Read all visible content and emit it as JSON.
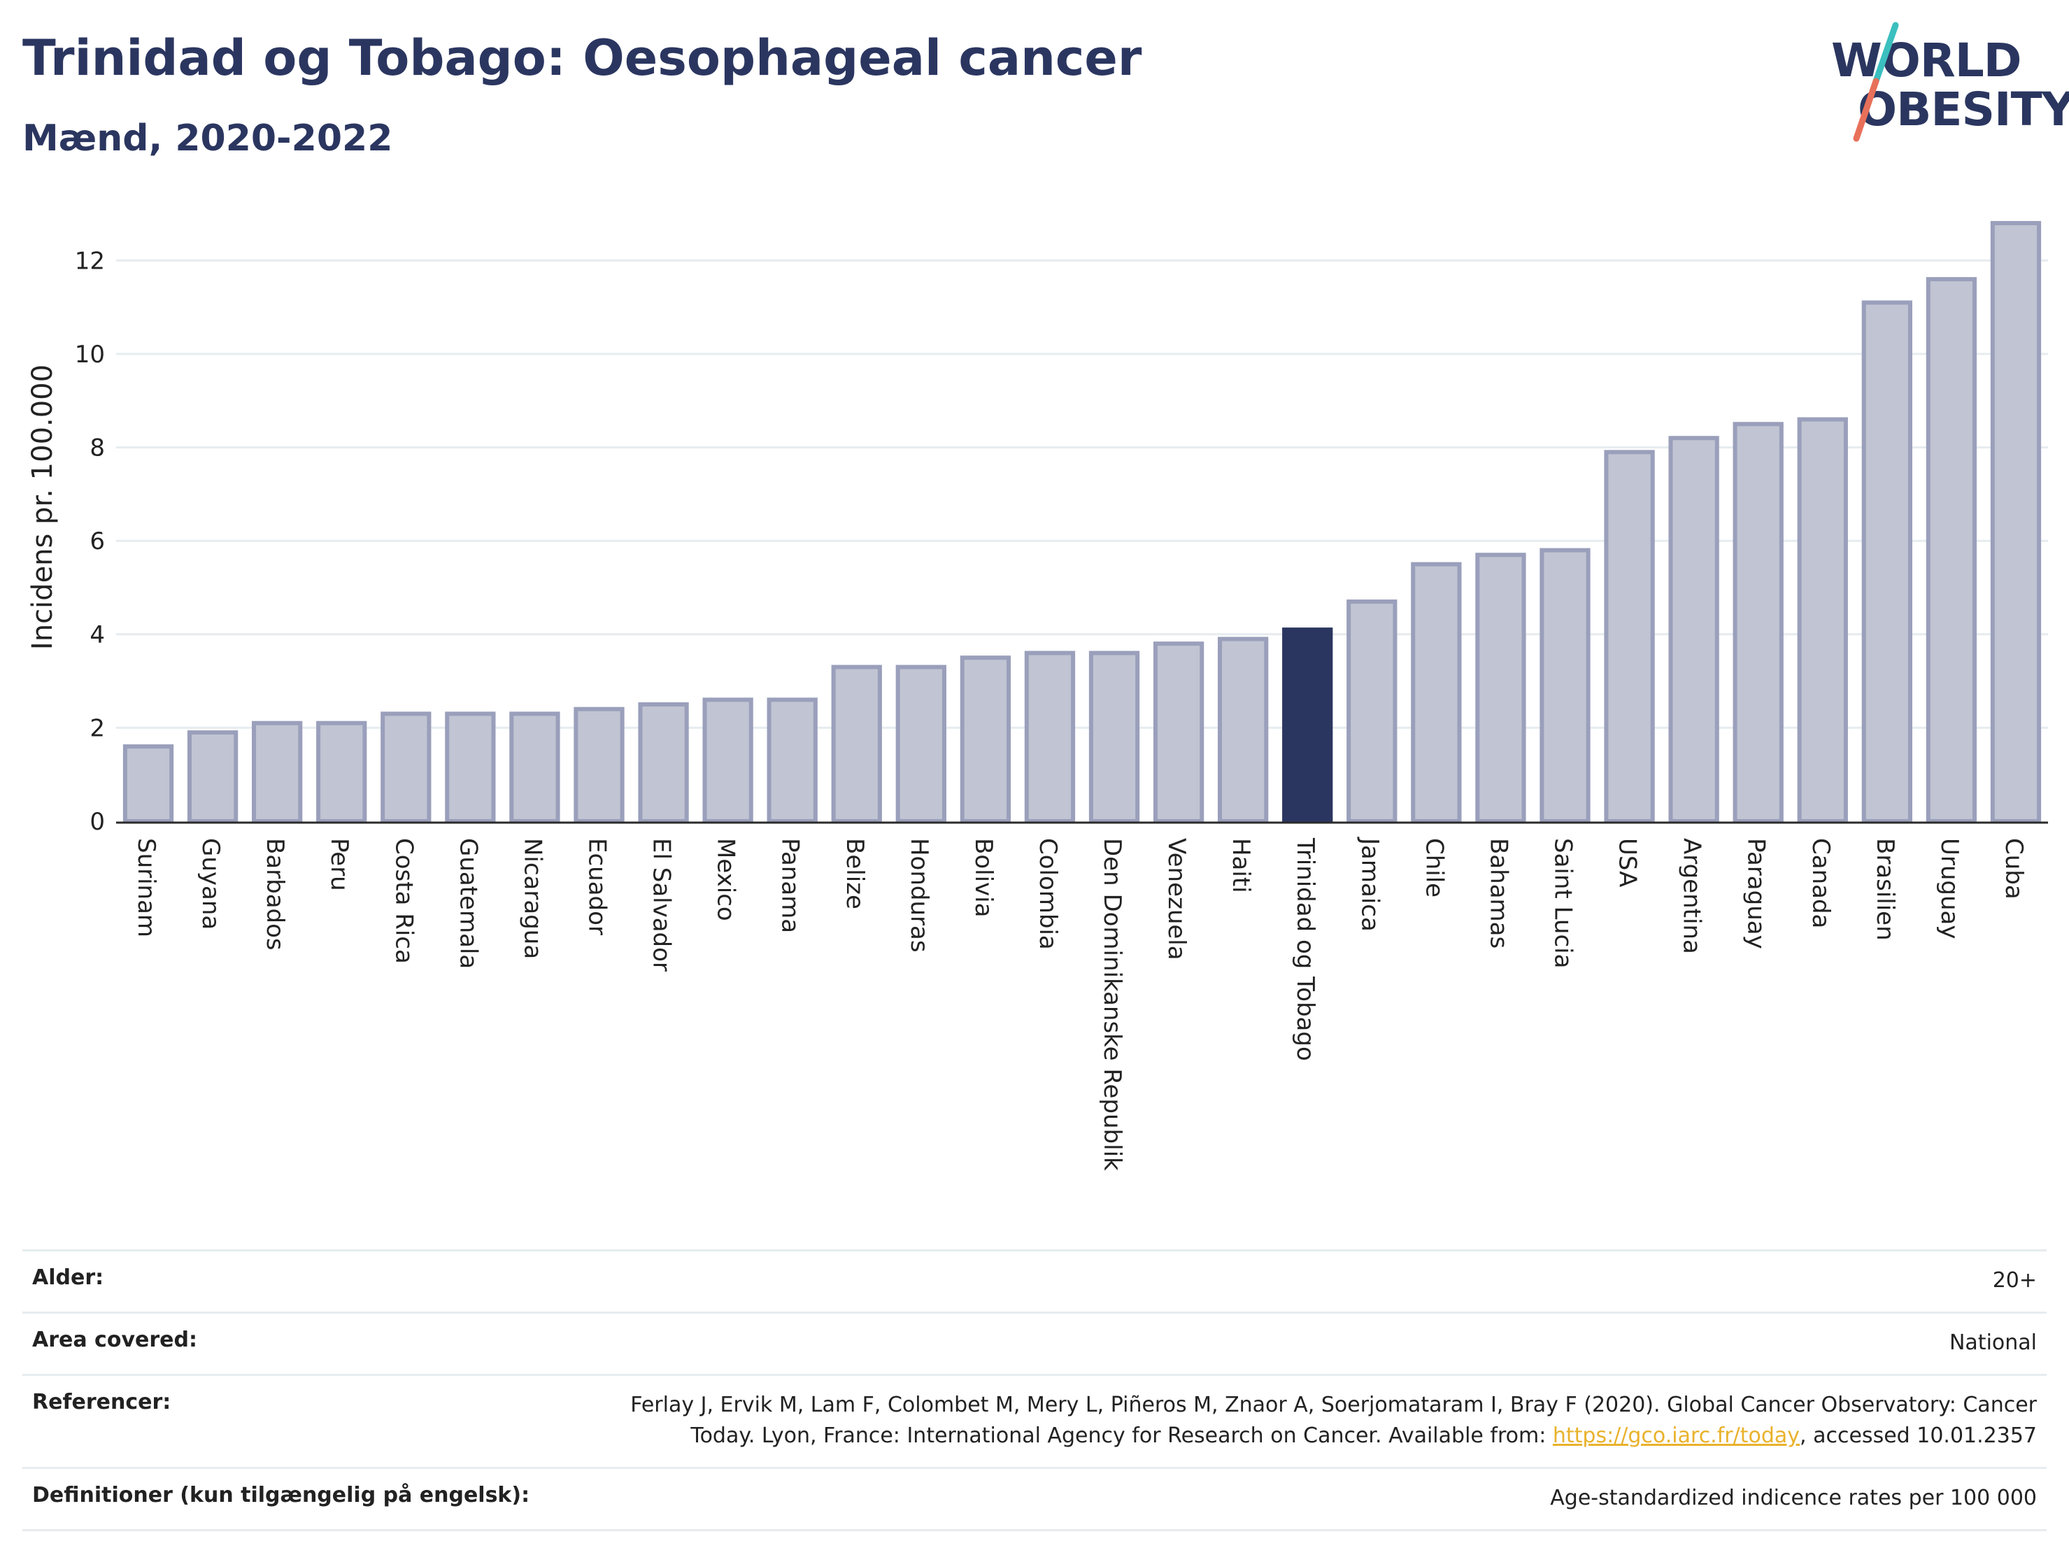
{
  "header": {
    "title": "Trinidad og Tobago: Oesophageal cancer",
    "subtitle": "Mænd, 2020-2022"
  },
  "logo": {
    "line1": "WORLD",
    "line2": "OBESITY",
    "accent_teal": "#3bbfbf",
    "accent_coral": "#e8705a"
  },
  "colors": {
    "bar_default": "#c1c4d2",
    "bar_border": "#9a9fbb",
    "bar_highlight": "#2b3660",
    "text_dark": "#2b3660",
    "grid": "#e6ecef"
  },
  "chart_data": {
    "type": "bar",
    "ylabel": "Incidens pr. 100.000",
    "xlabel": "",
    "ylim": [
      0,
      13
    ],
    "yticks": [
      0,
      2,
      4,
      6,
      8,
      10,
      12
    ],
    "grid": true,
    "highlight": "Trinidad og Tobago",
    "categories": [
      "Surinam",
      "Guyana",
      "Barbados",
      "Peru",
      "Costa Rica",
      "Guatemala",
      "Nicaragua",
      "Ecuador",
      "El Salvador",
      "Mexico",
      "Panama",
      "Belize",
      "Honduras",
      "Bolivia",
      "Colombia",
      "Den Dominikanske Republik",
      "Venezuela",
      "Haiti",
      "Trinidad og Tobago",
      "Jamaica",
      "Chile",
      "Bahamas",
      "Saint Lucia",
      "USA",
      "Argentina",
      "Paraguay",
      "Canada",
      "Brasilien",
      "Uruguay",
      "Cuba"
    ],
    "values": [
      1.6,
      1.9,
      2.1,
      2.1,
      2.3,
      2.3,
      2.3,
      2.4,
      2.5,
      2.6,
      2.6,
      3.3,
      3.3,
      3.5,
      3.6,
      3.6,
      3.8,
      3.9,
      4.1,
      4.7,
      5.5,
      5.7,
      5.8,
      7.9,
      8.2,
      8.5,
      8.6,
      11.1,
      11.6,
      12.8
    ]
  },
  "footer": {
    "age_label": "Alder:",
    "age_value": "20+",
    "area_label": "Area covered:",
    "area_value": "National",
    "ref_label": "Referencer:",
    "ref_text1": "Ferlay J, Ervik M, Lam F, Colombet M, Mery L, Piñeros M, Znaor A, Soerjomataram I, Bray F (2020). Global Cancer Observatory: Cancer",
    "ref_text2": "Today. Lyon, France: International Agency for Research on Cancer. Available from: ",
    "ref_link": "https://gco.iarc.fr/today",
    "ref_text3": ", accessed 10.01.2357",
    "def_label": "Definitioner (kun tilgængelig på engelsk):",
    "def_value": "Age-standardized indicence rates per 100 000"
  }
}
